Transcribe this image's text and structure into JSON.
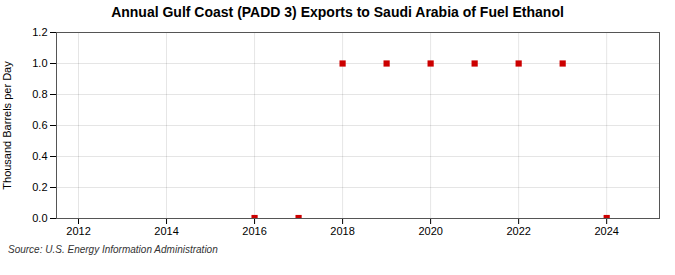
{
  "chart_data": {
    "type": "scatter",
    "title": "Annual Gulf Coast (PADD 3) Exports to Saudi Arabia of Fuel Ethanol",
    "ylabel": "Thousand Barrels per Day",
    "source": "Source: U.S. Energy Information Administration",
    "x": [
      2016,
      2017,
      2018,
      2019,
      2020,
      2021,
      2022,
      2023,
      2024
    ],
    "values": [
      0.003,
      0.003,
      1.0,
      1.0,
      1.0,
      1.0,
      1.0,
      1.0,
      0.003
    ],
    "color": "#cc0000",
    "marker": "square",
    "xlim": [
      2011.5,
      2025.2
    ],
    "ylim": [
      0,
      1.2
    ],
    "xticks": [
      2012,
      2014,
      2016,
      2018,
      2020,
      2022,
      2024
    ],
    "yticks": [
      {
        "value": 0,
        "label": "0.0"
      },
      0.2,
      0.4,
      0.6,
      0.8,
      {
        "value": 1,
        "label": "1.0"
      },
      1.2
    ],
    "grid": true
  }
}
